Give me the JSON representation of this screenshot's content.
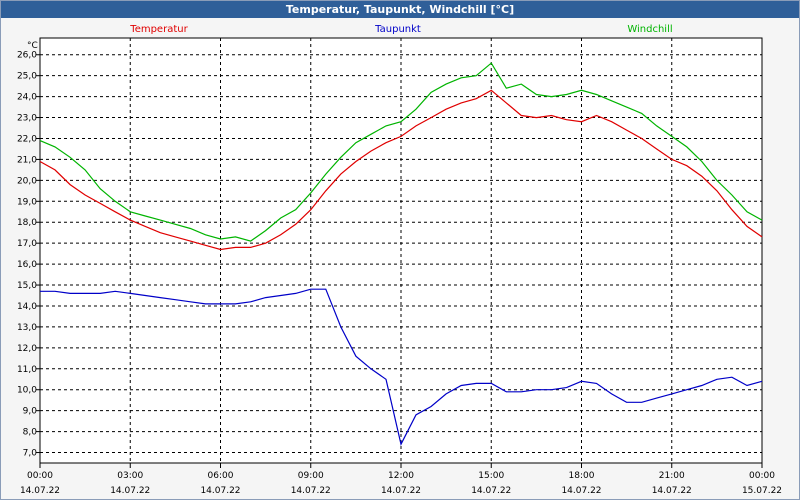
{
  "window": {
    "title": "Temperatur, Taupunkt, Windchill [°C]"
  },
  "chart_data": {
    "type": "line",
    "title": "Temperatur, Taupunkt, Windchill [°C]",
    "ylabel": "°C",
    "ylim": [
      6.5,
      26.8
    ],
    "y_ticks": [
      "7,0",
      "8,0",
      "9,0",
      "10,0",
      "11,0",
      "12,0",
      "13,0",
      "14,0",
      "15,0",
      "16,0",
      "17,0",
      "18,0",
      "19,0",
      "20,0",
      "21,0",
      "22,0",
      "23,0",
      "24,0",
      "25,0",
      "26,0"
    ],
    "xlim": [
      0,
      24
    ],
    "x_ticks": [
      {
        "time": "00:00",
        "date": "14.07.22"
      },
      {
        "time": "03:00",
        "date": "14.07.22"
      },
      {
        "time": "06:00",
        "date": "14.07.22"
      },
      {
        "time": "09:00",
        "date": "14.07.22"
      },
      {
        "time": "12:00",
        "date": "14.07.22"
      },
      {
        "time": "15:00",
        "date": "14.07.22"
      },
      {
        "time": "18:00",
        "date": "14.07.22"
      },
      {
        "time": "21:00",
        "date": "14.07.22"
      },
      {
        "time": "00:00",
        "date": "15.07.22"
      }
    ],
    "grid": true,
    "legend_position": "top",
    "x": [
      0,
      0.5,
      1,
      1.5,
      2,
      2.5,
      3,
      3.5,
      4,
      4.5,
      5,
      5.5,
      6,
      6.5,
      7,
      7.5,
      8,
      8.5,
      9,
      9.5,
      10,
      10.5,
      11,
      11.5,
      12,
      12.5,
      13,
      13.5,
      14,
      14.5,
      15,
      15.5,
      16,
      16.5,
      17,
      17.5,
      18,
      18.5,
      19,
      19.5,
      20,
      20.5,
      21,
      21.5,
      22,
      22.5,
      23,
      23.5,
      24
    ],
    "series": [
      {
        "name": "Temperatur",
        "color": "#e00000",
        "values": [
          20.9,
          20.5,
          19.8,
          19.3,
          18.9,
          18.5,
          18.1,
          17.8,
          17.5,
          17.3,
          17.1,
          16.9,
          16.7,
          16.8,
          16.8,
          17.0,
          17.4,
          17.9,
          18.6,
          19.5,
          20.3,
          20.9,
          21.4,
          21.8,
          22.1,
          22.6,
          23.0,
          23.4,
          23.7,
          23.9,
          24.3,
          23.7,
          23.1,
          23.0,
          23.1,
          22.9,
          22.8,
          23.1,
          22.8,
          22.4,
          22.0,
          21.5,
          21.0,
          20.7,
          20.2,
          19.5,
          18.6,
          17.8,
          17.3
        ]
      },
      {
        "name": "Taupunkt",
        "color": "#0000c8",
        "values": [
          14.7,
          14.7,
          14.6,
          14.6,
          14.6,
          14.7,
          14.6,
          14.5,
          14.4,
          14.3,
          14.2,
          14.1,
          14.1,
          14.1,
          14.2,
          14.4,
          14.5,
          14.6,
          14.8,
          14.8,
          13.0,
          11.6,
          11.0,
          10.5,
          7.4,
          8.8,
          9.2,
          9.8,
          10.2,
          10.3,
          10.3,
          9.9,
          9.9,
          10.0,
          10.0,
          10.1,
          10.4,
          10.3,
          9.8,
          9.4,
          9.4,
          9.6,
          9.8,
          10.0,
          10.2,
          10.5,
          10.6,
          10.2,
          10.4
        ]
      },
      {
        "name": "Windchill",
        "color": "#00b400",
        "values": [
          21.9,
          21.6,
          21.1,
          20.5,
          19.6,
          19.0,
          18.5,
          18.3,
          18.1,
          17.9,
          17.7,
          17.4,
          17.2,
          17.3,
          17.1,
          17.6,
          18.2,
          18.6,
          19.4,
          20.3,
          21.1,
          21.8,
          22.2,
          22.6,
          22.8,
          23.4,
          24.2,
          24.6,
          24.9,
          25.0,
          25.6,
          24.4,
          24.6,
          24.1,
          24.0,
          24.1,
          24.3,
          24.1,
          23.8,
          23.5,
          23.2,
          22.6,
          22.1,
          21.6,
          20.9,
          20.0,
          19.3,
          18.5,
          18.1
        ]
      }
    ]
  }
}
